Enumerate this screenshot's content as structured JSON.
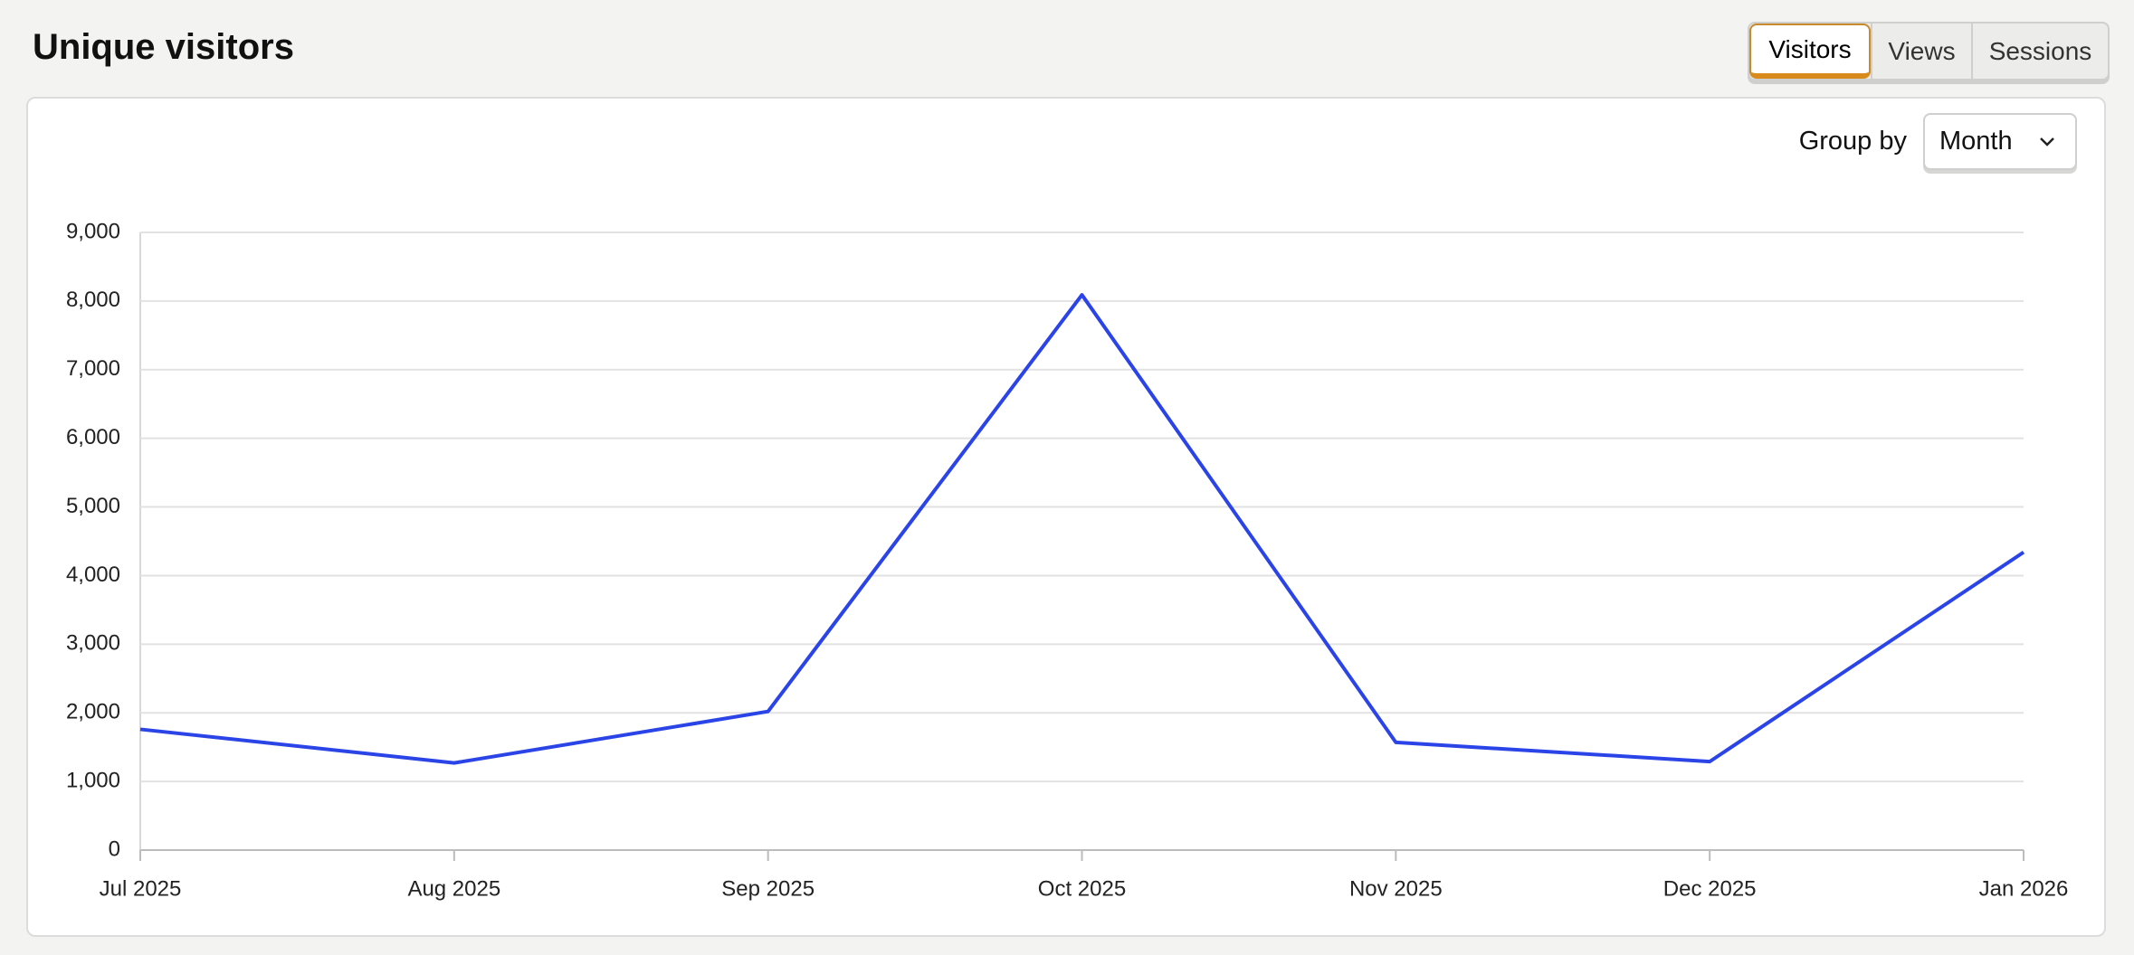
{
  "header": {
    "title": "Unique visitors"
  },
  "tabs": {
    "items": [
      "Visitors",
      "Views",
      "Sessions"
    ],
    "active": 0
  },
  "group_by": {
    "label": "Group by",
    "value": "Month"
  },
  "chart_data": {
    "type": "line",
    "categories": [
      "Jul 2025",
      "Aug 2025",
      "Sep 2025",
      "Oct 2025",
      "Nov 2025",
      "Dec 2025",
      "Jan 2026"
    ],
    "series": [
      {
        "color": "#2a44e8",
        "values": [
          1760,
          1270,
          2020,
          8090,
          1570,
          1290,
          4340
        ]
      }
    ],
    "dashed_last_segment": true,
    "ylim": [
      0,
      9000
    ],
    "yticks": [
      0,
      {
        "value": 1000,
        "label": "1,000"
      },
      {
        "value": 2000,
        "label": "2,000"
      },
      {
        "value": 3000,
        "label": "3,000"
      },
      {
        "value": 4000,
        "label": "4,000"
      },
      {
        "value": 5000,
        "label": "5,000"
      },
      {
        "value": 6000,
        "label": "6,000"
      },
      {
        "value": 7000,
        "label": "7,000"
      },
      {
        "value": 8000,
        "label": "8,000"
      },
      {
        "value": 9000,
        "label": "9,000"
      }
    ],
    "grid": true
  }
}
